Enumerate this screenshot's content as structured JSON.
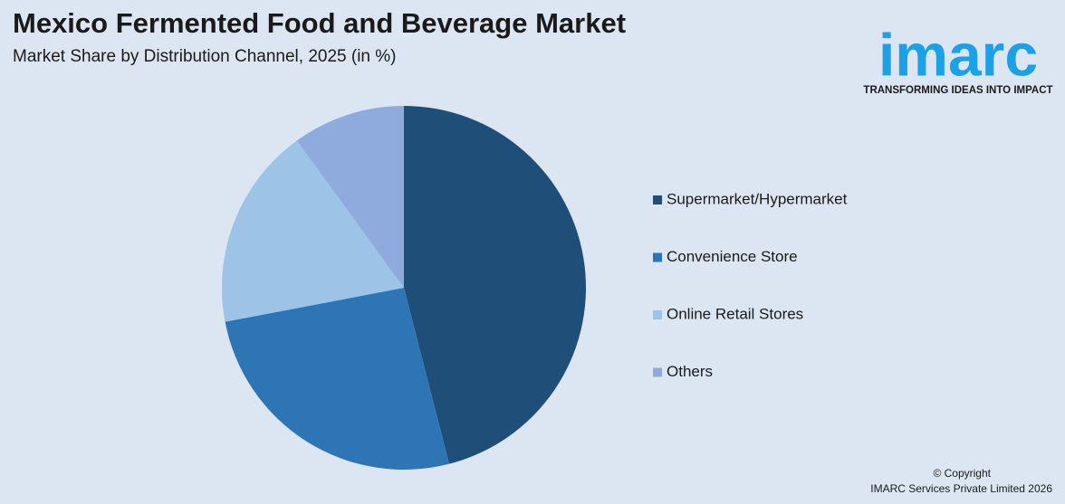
{
  "chart_data": {
    "type": "pie",
    "title": "Mexico Fermented Food and Beverage Market",
    "subtitle": "Market Share by Distribution Channel, 2025 (in %)",
    "categories": [
      "Supermarket/Hypermarket",
      "Convenience Store",
      "Online Retail Stores",
      "Others"
    ],
    "values": [
      46,
      26,
      18,
      10
    ],
    "colors": [
      "#1f4e79",
      "#2e75b6",
      "#9dc3e6",
      "#8faadc"
    ],
    "legend": "right"
  },
  "logo": {
    "name": "imarc",
    "tagline": "TRANSFORMING IDEAS INTO IMPACT"
  },
  "footer": {
    "line1": "© Copyright",
    "line2": "IMARC Services Private Limited 2026"
  }
}
